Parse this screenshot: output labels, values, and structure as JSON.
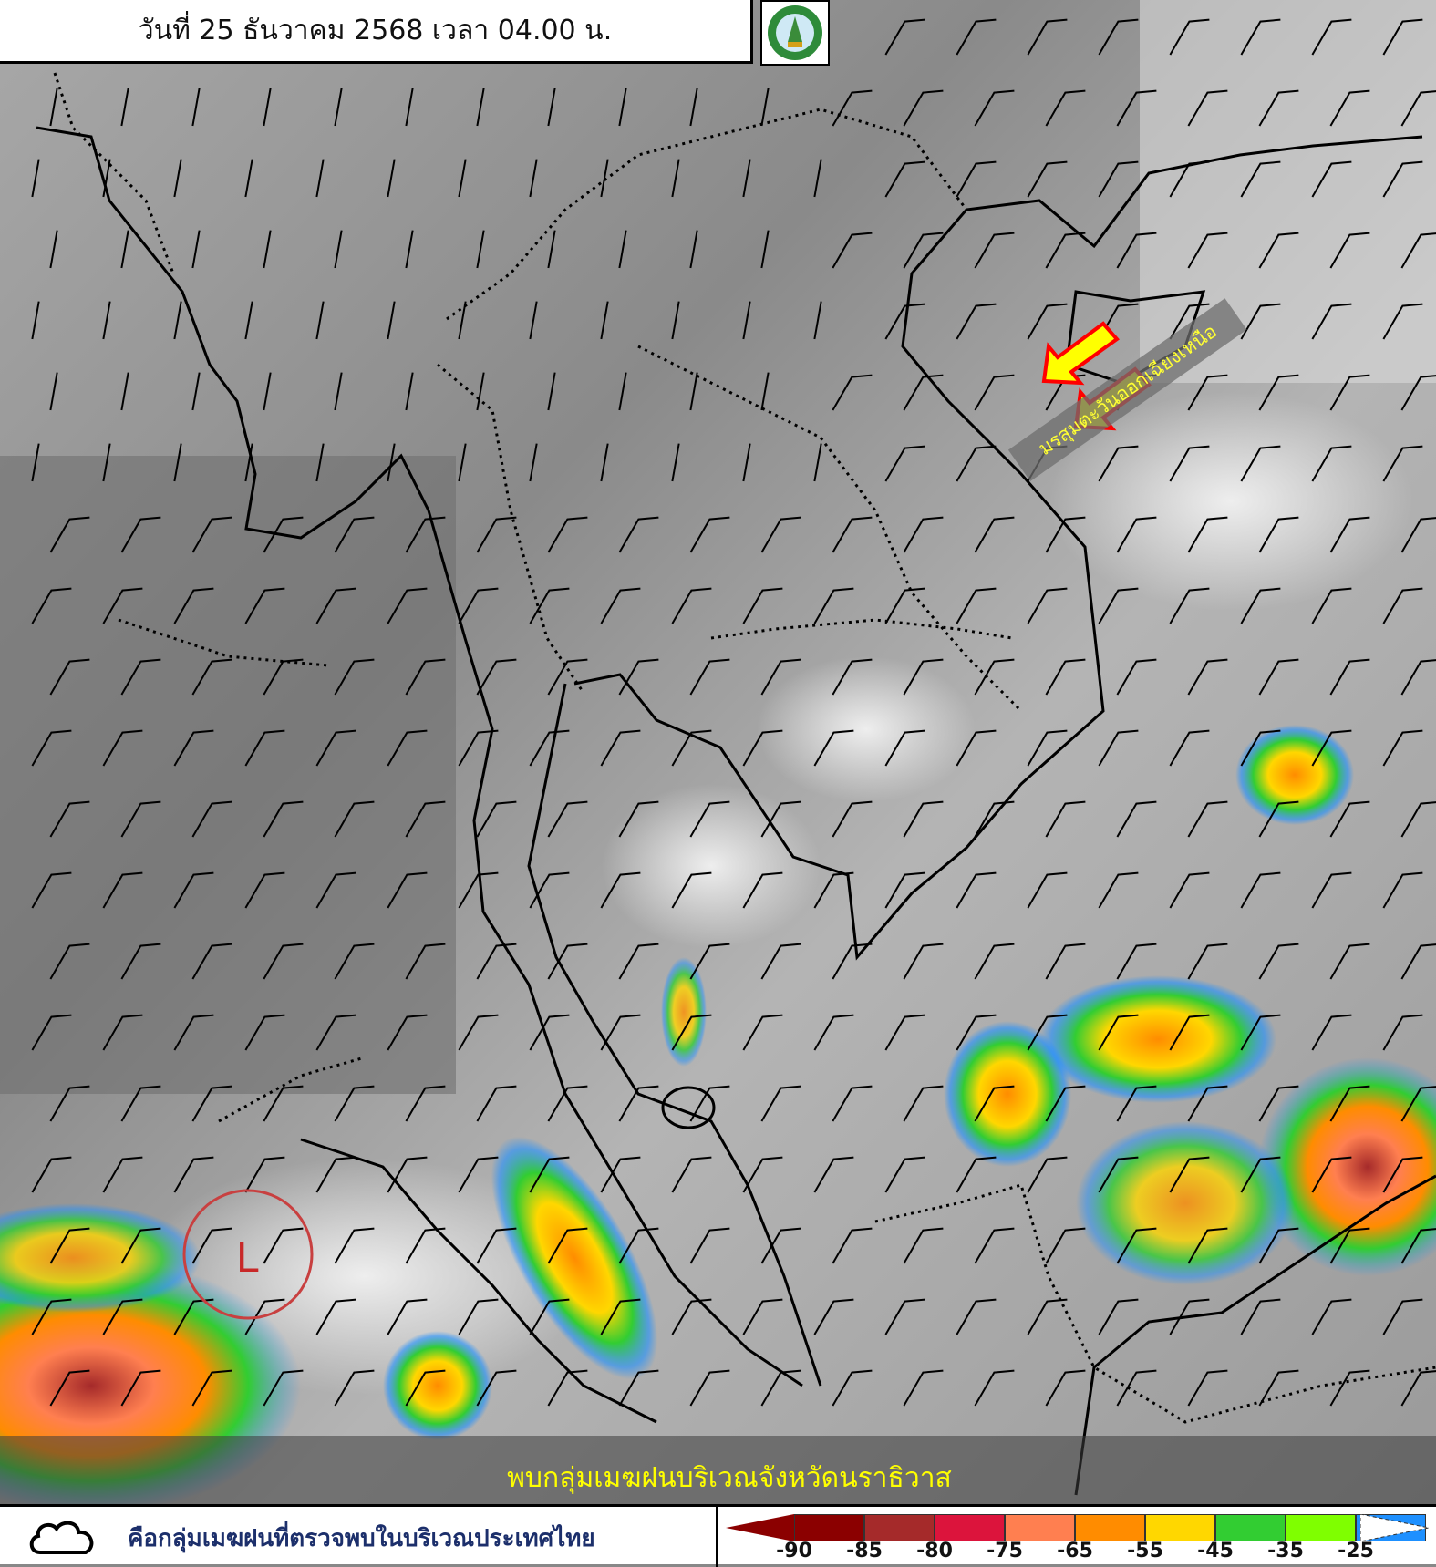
{
  "header": {
    "title": "วันที่ 25 ธันวาคม 2568 เวลา 04.00 น.",
    "logo_icon": "tmd-logo"
  },
  "map": {
    "annotation_monsoon": "มรสุมตะวันออกเฉียงเหนือ",
    "low_pressure_label": "L",
    "banner": "พบกลุ่มเมฆฝนบริเวณจังหวัดนราธิวาส",
    "arrow_color": "#ffff00",
    "arrow_outline": "#ff0000"
  },
  "footer": {
    "cloud_icon": "cloud-outline-icon",
    "legend_text": "คือกลุ่มเมฆฝนที่ตรวจพบในบริเวณประเทศไทย",
    "scale": {
      "colors": [
        "#8b0000",
        "#a52a2a",
        "#dc143c",
        "#ff7f50",
        "#ff8c00",
        "#ffd700",
        "#32cd32",
        "#7fff00",
        "#1e90ff"
      ],
      "ticks": [
        "-90",
        "-85",
        "-80",
        "-75",
        "-65",
        "-55",
        "-45",
        "-35",
        "-25"
      ]
    }
  }
}
